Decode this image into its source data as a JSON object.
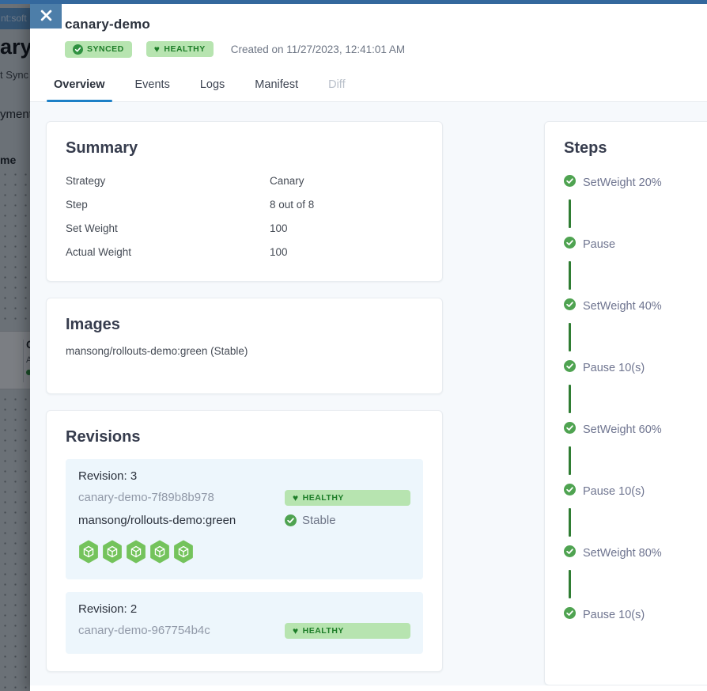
{
  "backdrop": {
    "chip_text": "nt:soft",
    "page_title_fragment": "ary-",
    "sync_fragment": "t Sync",
    "tab_fragment": "yment",
    "table_header_fragment": "me",
    "card_title_fragment": "Ca",
    "card_subtitle_fragment": "Ap"
  },
  "panel": {
    "title": "canary-demo",
    "created": "Created on 11/27/2023, 12:41:01 AM",
    "badges": [
      {
        "label": "SYNCED",
        "icon": "check-circle-icon"
      },
      {
        "label": "HEALTHY",
        "icon": "heart-icon"
      }
    ],
    "tabs": [
      {
        "label": "Overview",
        "state": "active"
      },
      {
        "label": "Events",
        "state": "normal"
      },
      {
        "label": "Logs",
        "state": "normal"
      },
      {
        "label": "Manifest",
        "state": "normal"
      },
      {
        "label": "Diff",
        "state": "disabled"
      }
    ]
  },
  "summary": {
    "title": "Summary",
    "rows": [
      {
        "label": "Strategy",
        "value": "Canary"
      },
      {
        "label": "Step",
        "value": "8 out of 8"
      },
      {
        "label": "Set Weight",
        "value": "100"
      },
      {
        "label": "Actual Weight",
        "value": "100"
      }
    ]
  },
  "images": {
    "title": "Images",
    "items": [
      "mansong/rollouts-demo:green (Stable)"
    ]
  },
  "revisions": {
    "title": "Revisions",
    "items": [
      {
        "name": "Revision: 3",
        "replicaset": "canary-demo-7f89b8b978",
        "status": "HEALTHY",
        "image": "mansong/rollouts-demo:green",
        "role": "Stable",
        "pod_count": 5
      },
      {
        "name": "Revision: 2",
        "replicaset": "canary-demo-967754b4c",
        "status": "HEALTHY"
      }
    ]
  },
  "steps": {
    "title": "Steps",
    "items": [
      "SetWeight 20%",
      "Pause",
      "SetWeight 40%",
      "Pause 10(s)",
      "SetWeight 60%",
      "Pause 10(s)",
      "SetWeight 80%",
      "Pause 10(s)"
    ]
  },
  "colors": {
    "top_strip": "#34689d",
    "close_button_bg": "#4d7ea9",
    "accent_blue": "#1d80c7",
    "badge_bg": "#b7e4b0",
    "badge_text": "#1d7d28",
    "pod_green": "#74c35c",
    "step_check_green": "#4fa351",
    "step_connector_green": "#2f7d33",
    "revision_block_bg": "#edf6fc",
    "content_bg": "#f6f9fc"
  }
}
